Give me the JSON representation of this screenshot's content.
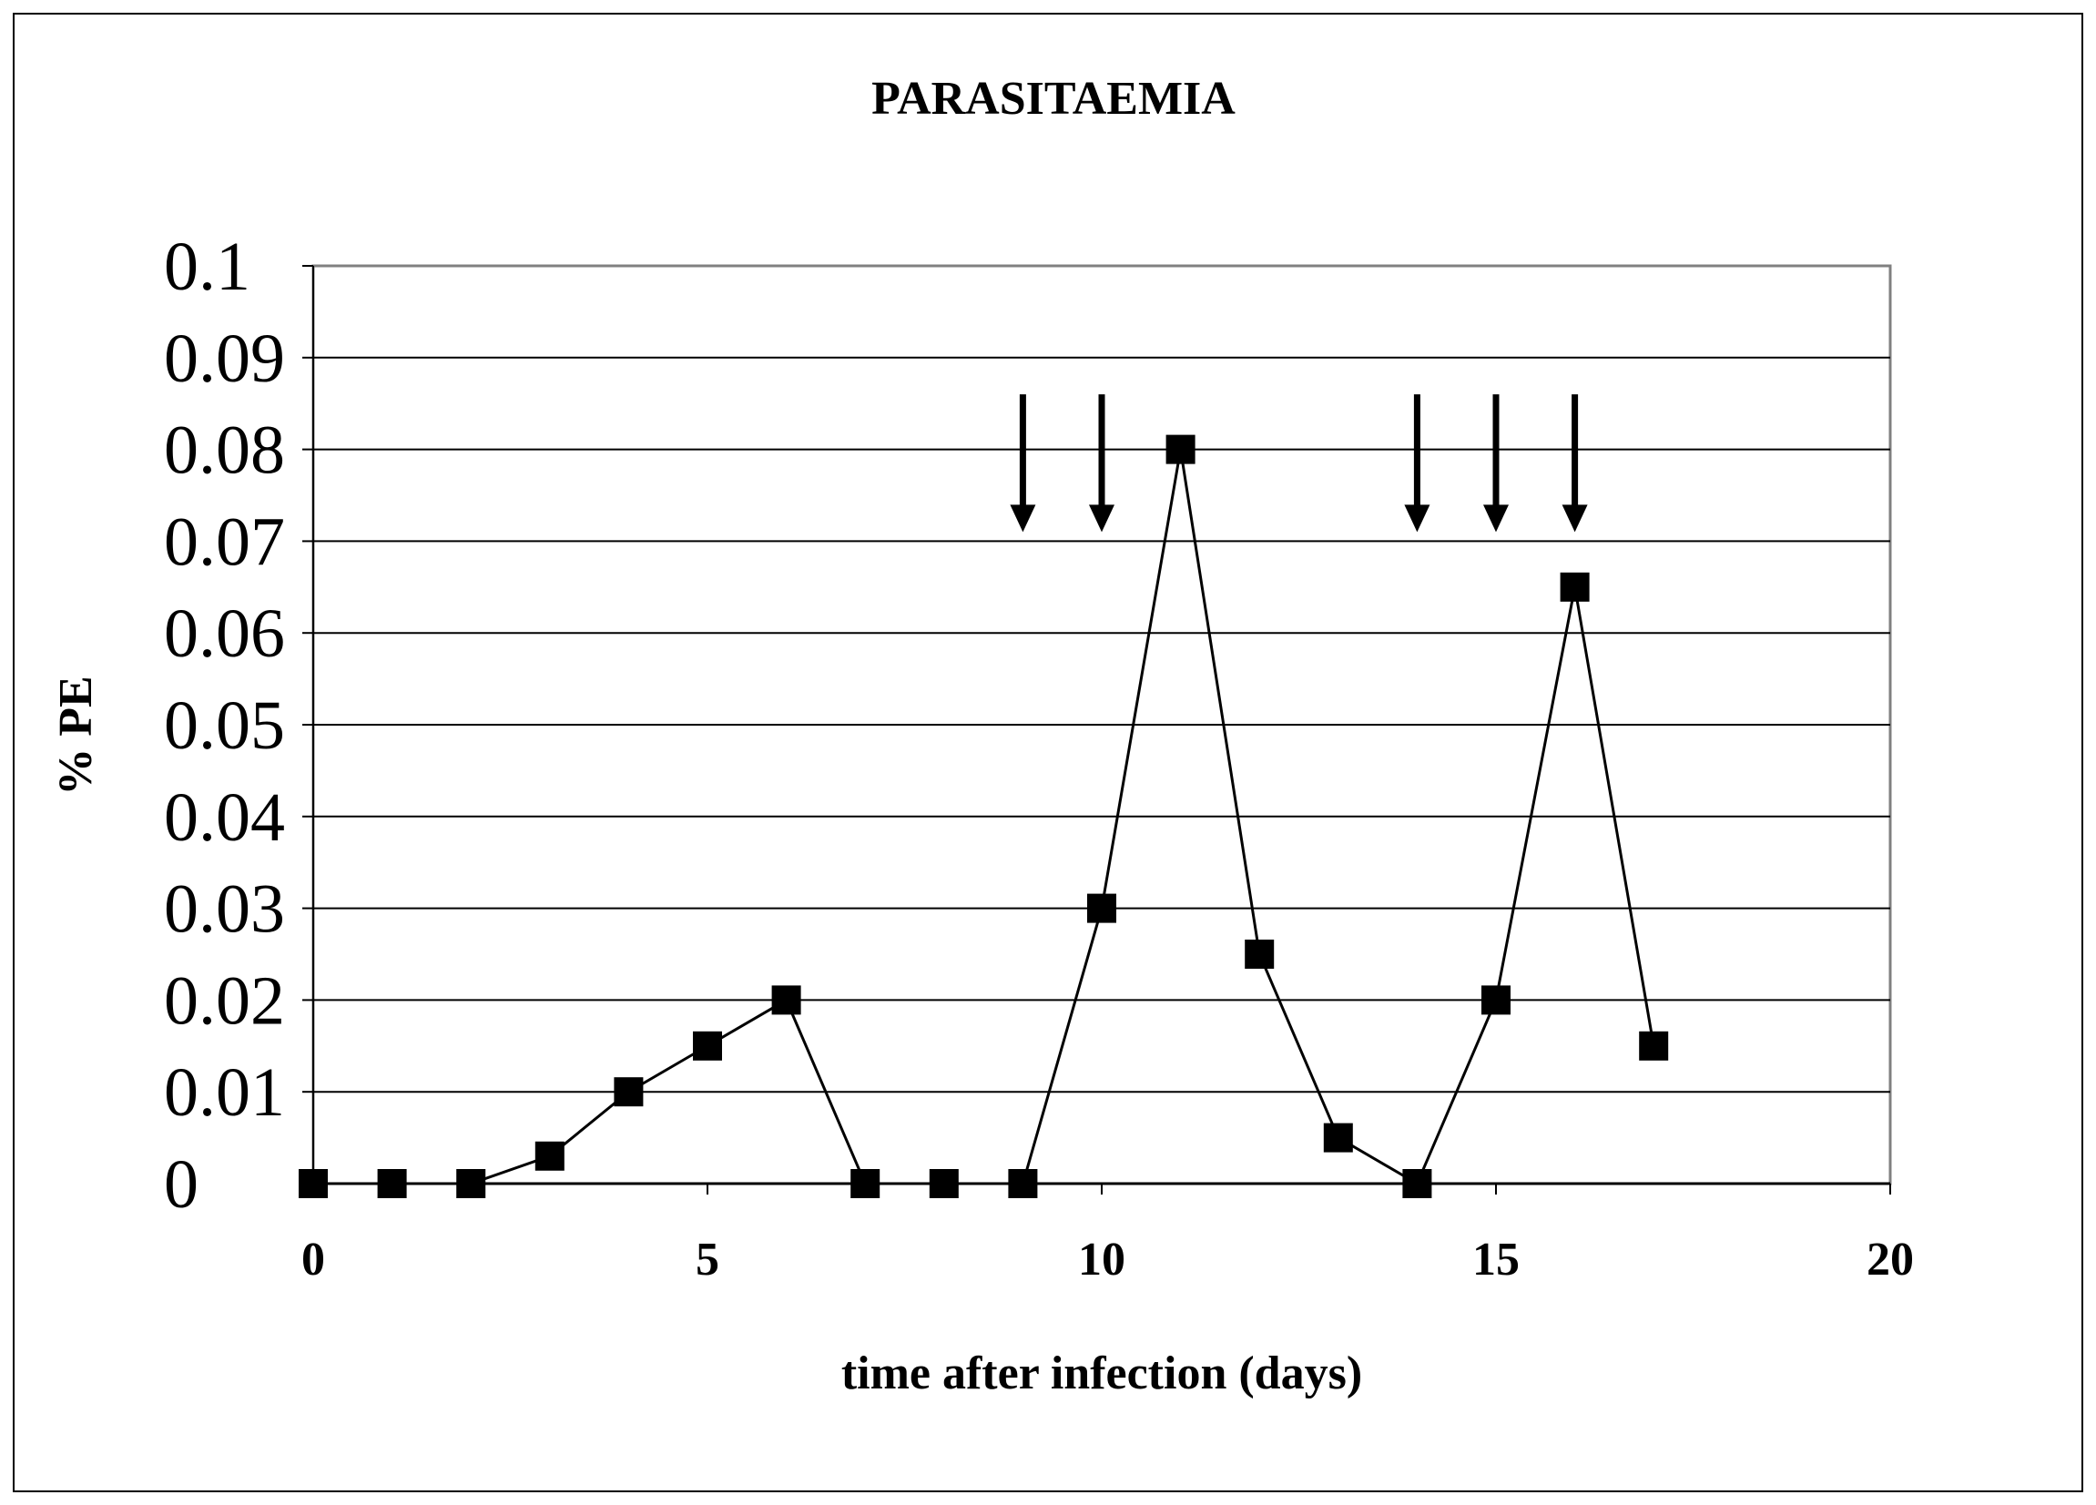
{
  "chart_data": {
    "type": "line",
    "title": "PARASITAEMIA",
    "xlabel": "time after infection (days)",
    "ylabel": "% PE",
    "xlim": [
      0,
      20
    ],
    "ylim": [
      0,
      0.1
    ],
    "x_ticks": [
      "0",
      "5",
      "10",
      "15",
      "20"
    ],
    "x_tick_values": [
      0,
      5,
      10,
      15,
      20
    ],
    "y_ticks": [
      "0",
      "0.01",
      "0.02",
      "0.03",
      "0.04",
      "0.05",
      "0.06",
      "0.07",
      "0.08",
      "0.09",
      "0.1"
    ],
    "y_tick_values": [
      0,
      0.01,
      0.02,
      0.03,
      0.04,
      0.05,
      0.06,
      0.07,
      0.08,
      0.09,
      0.1
    ],
    "grid": "horizontal",
    "marker": "square",
    "series": [
      {
        "x": [
          0,
          1,
          2,
          3,
          4,
          5,
          6,
          7,
          8,
          9,
          10,
          11,
          12,
          13,
          14,
          15,
          16,
          17
        ],
        "y": [
          0,
          0,
          0,
          0.003,
          0.01,
          0.015,
          0.02,
          0,
          0,
          0,
          0.03,
          0.08,
          0.025,
          0.005,
          0,
          0.02,
          0.065,
          0.015
        ]
      }
    ],
    "annotations": {
      "arrows_at_x": [
        9,
        10,
        14,
        15,
        16
      ],
      "arrow_y_top": 0.086,
      "arrow_y_tip": 0.071
    },
    "colors": {
      "line": "#000000",
      "marker": "#000000",
      "grid": "#000000",
      "plot_border": "#808080"
    }
  }
}
